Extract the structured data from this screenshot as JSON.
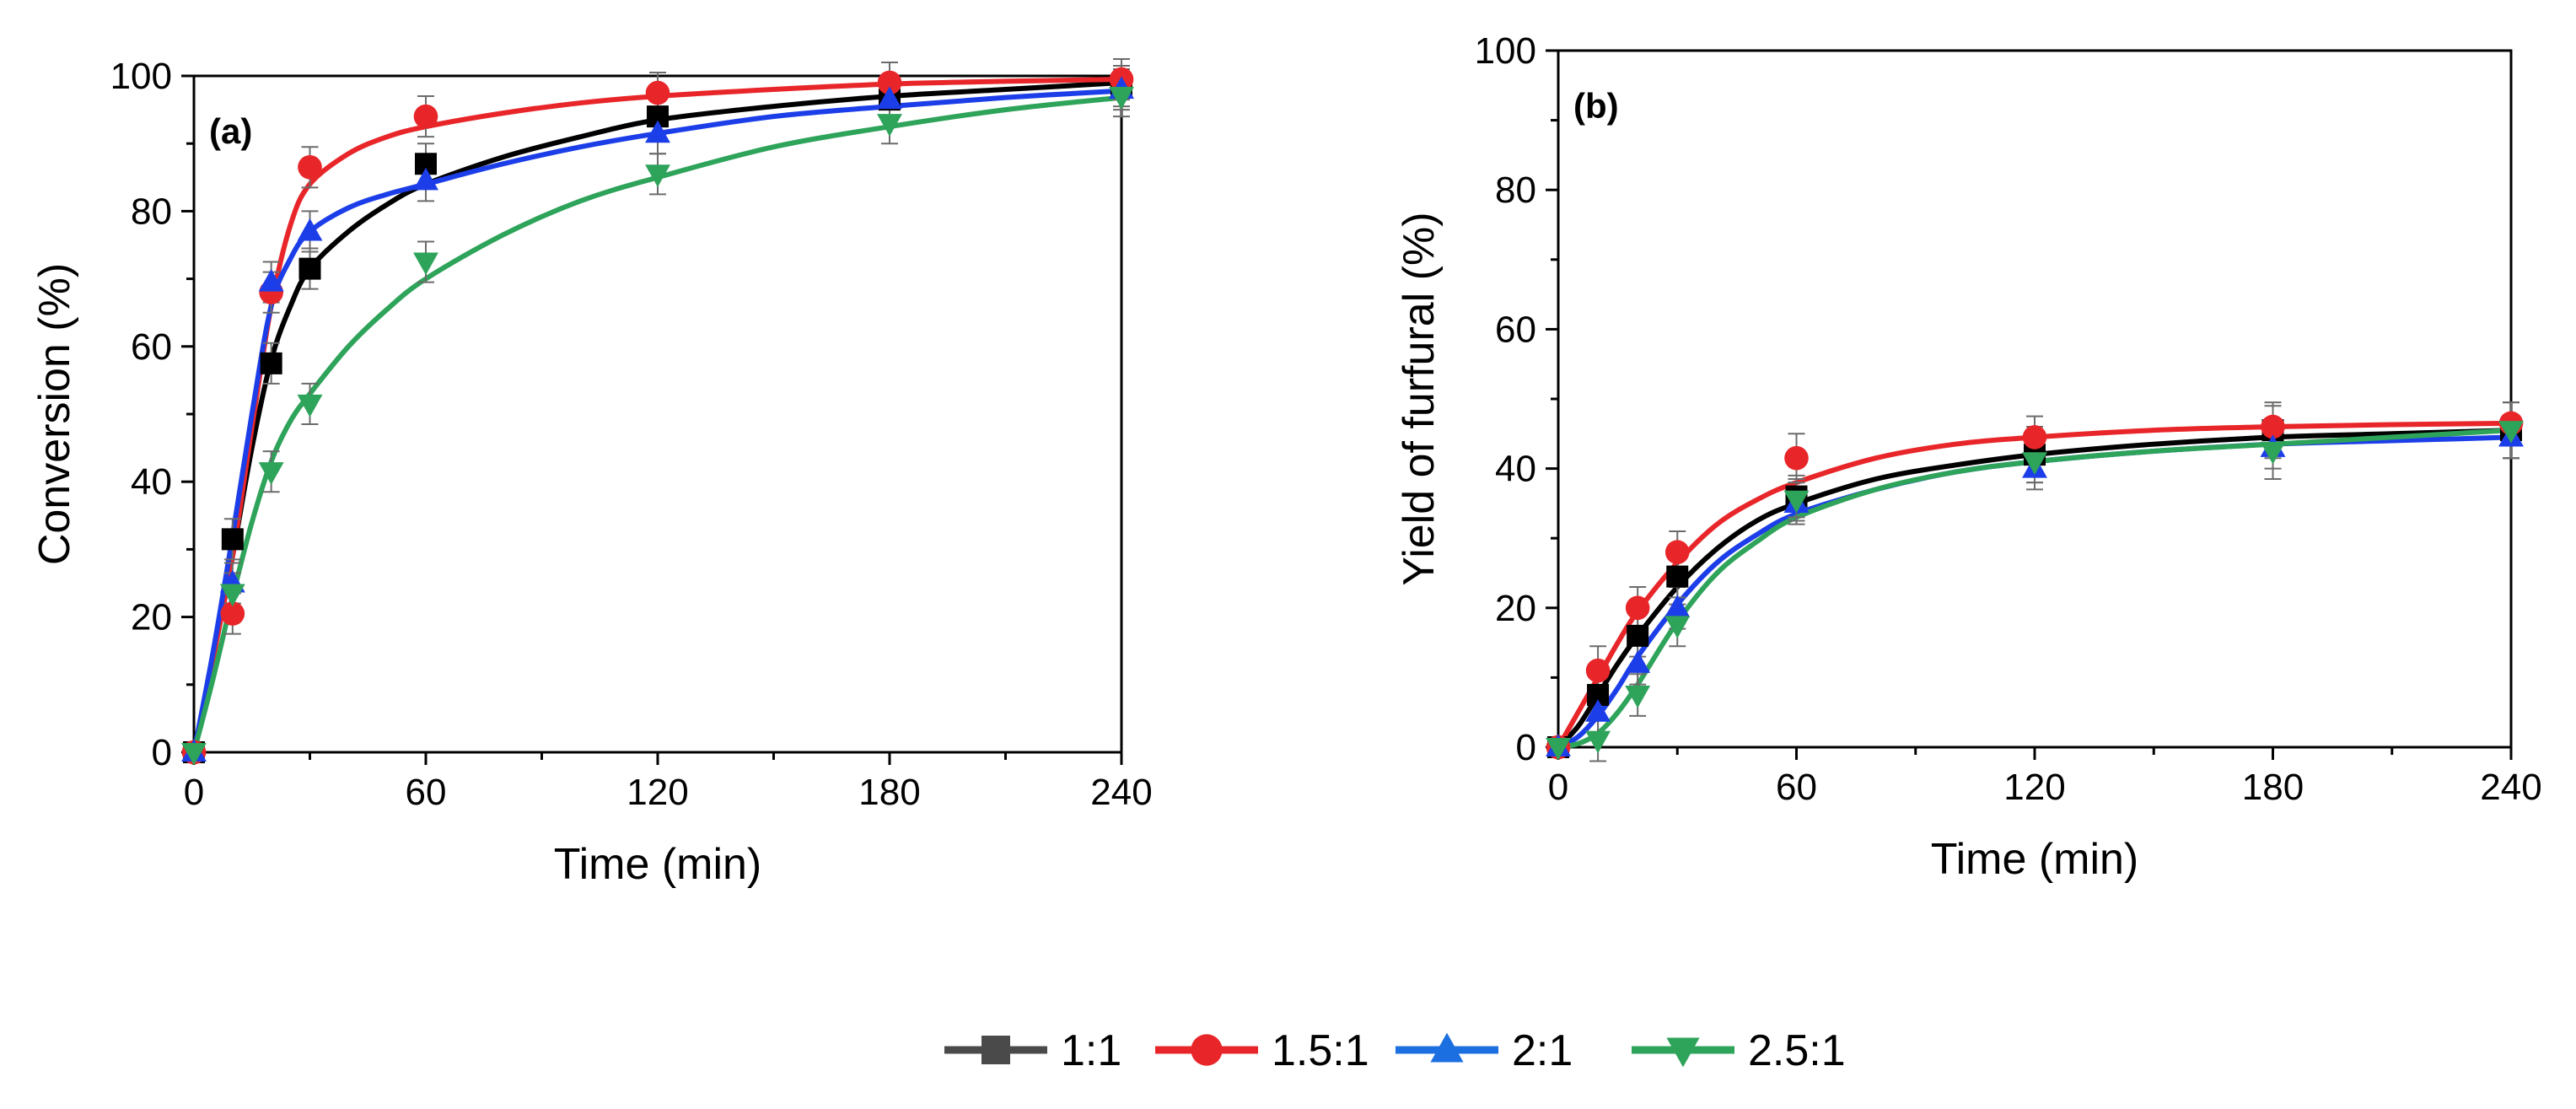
{
  "chart_data": [
    {
      "type": "line",
      "panel": "(a)",
      "xlabel": "Time (min)",
      "ylabel": "Conversion (%)",
      "xlim": [
        0,
        240
      ],
      "ylim": [
        0,
        100
      ],
      "xticks": [
        0,
        60,
        120,
        180,
        240
      ],
      "yticks": [
        0,
        20,
        40,
        60,
        80,
        100
      ],
      "x": [
        0,
        10,
        20,
        30,
        60,
        120,
        180,
        240
      ],
      "series": [
        {
          "name": "1:1",
          "marker": "square",
          "color": "#000000",
          "values": [
            0,
            31.5,
            57.5,
            71.5,
            87,
            94,
            96.5,
            98.5
          ],
          "err": [
            0,
            3,
            3,
            3,
            3,
            3,
            3,
            3
          ],
          "fit": [
            [
              0,
              0
            ],
            [
              5,
              14
            ],
            [
              10,
              29
            ],
            [
              15,
              45
            ],
            [
              20,
              58
            ],
            [
              25,
              66
            ],
            [
              30,
              71.5
            ],
            [
              40,
              77
            ],
            [
              50,
              81
            ],
            [
              60,
              84
            ],
            [
              80,
              88
            ],
            [
              100,
              91
            ],
            [
              120,
              93.5
            ],
            [
              150,
              95.5
            ],
            [
              180,
              97
            ],
            [
              210,
              98
            ],
            [
              240,
              99
            ]
          ]
        },
        {
          "name": "1.5:1",
          "marker": "circle",
          "color": "#e8262a",
          "values": [
            0,
            20.5,
            68,
            86.5,
            94,
            97.5,
            99,
            99.5
          ],
          "err": [
            0,
            3,
            3,
            3,
            3,
            3,
            3,
            3
          ],
          "fit": [
            [
              0,
              0
            ],
            [
              5,
              14
            ],
            [
              10,
              29
            ],
            [
              15,
              48
            ],
            [
              20,
              66
            ],
            [
              25,
              78
            ],
            [
              30,
              84
            ],
            [
              40,
              88.5
            ],
            [
              50,
              91
            ],
            [
              60,
              92.5
            ],
            [
              80,
              94.5
            ],
            [
              100,
              96
            ],
            [
              120,
              97
            ],
            [
              150,
              98
            ],
            [
              180,
              98.8
            ],
            [
              210,
              99.2
            ],
            [
              240,
              99.5
            ]
          ]
        },
        {
          "name": "2:1",
          "marker": "triangle-up",
          "color": "#1c3ee8",
          "values": [
            0,
            25,
            69.5,
            77,
            84.5,
            91.5,
            96.5,
            98
          ],
          "err": [
            0,
            3,
            3,
            3,
            3,
            3,
            3,
            3
          ],
          "fit": [
            [
              0,
              0
            ],
            [
              5,
              15
            ],
            [
              10,
              32
            ],
            [
              15,
              50
            ],
            [
              20,
              66
            ],
            [
              25,
              73
            ],
            [
              30,
              77
            ],
            [
              40,
              80.5
            ],
            [
              50,
              82.5
            ],
            [
              60,
              84
            ],
            [
              80,
              87
            ],
            [
              100,
              89.5
            ],
            [
              120,
              91.5
            ],
            [
              150,
              94
            ],
            [
              180,
              95.5
            ],
            [
              210,
              96.8
            ],
            [
              240,
              97.8
            ]
          ]
        },
        {
          "name": "2.5:1",
          "marker": "triangle-down",
          "color": "#2ea35a",
          "values": [
            0,
            23.5,
            41.5,
            51.5,
            72.5,
            85.5,
            93,
            97
          ],
          "err": [
            0,
            3,
            3,
            3,
            3,
            3,
            3,
            3
          ],
          "fit": [
            [
              0,
              0
            ],
            [
              5,
              11
            ],
            [
              10,
              23
            ],
            [
              15,
              34
            ],
            [
              20,
              43
            ],
            [
              25,
              49
            ],
            [
              30,
              53
            ],
            [
              40,
              60
            ],
            [
              50,
              65.5
            ],
            [
              60,
              70
            ],
            [
              80,
              76.5
            ],
            [
              100,
              81.5
            ],
            [
              120,
              85
            ],
            [
              150,
              89.5
            ],
            [
              180,
              92.5
            ],
            [
              210,
              95
            ],
            [
              240,
              96.8
            ]
          ]
        }
      ]
    },
    {
      "type": "line",
      "panel": "(b)",
      "xlabel": "Time (min)",
      "ylabel": "Yield of furfural (%)",
      "xlim": [
        0,
        240
      ],
      "ylim": [
        0,
        100
      ],
      "xticks": [
        0,
        60,
        120,
        180,
        240
      ],
      "yticks": [
        0,
        20,
        40,
        60,
        80,
        100
      ],
      "x": [
        0,
        10,
        20,
        30,
        60,
        120,
        180,
        240
      ],
      "series": [
        {
          "name": "1:1",
          "marker": "square",
          "color": "#000000",
          "values": [
            0,
            7.5,
            16,
            24.5,
            36,
            42,
            45.5,
            45.5
          ],
          "err": [
            0,
            3,
            3,
            3,
            3,
            4,
            4,
            4
          ],
          "fit": [
            [
              0,
              0
            ],
            [
              5,
              3
            ],
            [
              10,
              7.5
            ],
            [
              15,
              12
            ],
            [
              20,
              16
            ],
            [
              30,
              23
            ],
            [
              40,
              28.5
            ],
            [
              50,
              32.5
            ],
            [
              60,
              35
            ],
            [
              80,
              38.5
            ],
            [
              100,
              40.5
            ],
            [
              120,
              42
            ],
            [
              150,
              43.5
            ],
            [
              180,
              44.5
            ],
            [
              210,
              45
            ],
            [
              240,
              45.5
            ]
          ]
        },
        {
          "name": "1.5:1",
          "marker": "circle",
          "color": "#e8262a",
          "values": [
            0,
            11,
            20,
            28,
            41.5,
            44.5,
            46,
            46.5
          ],
          "err": [
            0,
            3.5,
            3,
            3,
            3.5,
            3,
            3,
            3
          ],
          "fit": [
            [
              0,
              0
            ],
            [
              5,
              5
            ],
            [
              10,
              10
            ],
            [
              15,
              15
            ],
            [
              20,
              19.5
            ],
            [
              30,
              26.5
            ],
            [
              40,
              32
            ],
            [
              50,
              35.5
            ],
            [
              60,
              38
            ],
            [
              80,
              41.5
            ],
            [
              100,
              43.5
            ],
            [
              120,
              44.5
            ],
            [
              150,
              45.5
            ],
            [
              180,
              46
            ],
            [
              210,
              46.3
            ],
            [
              240,
              46.5
            ]
          ]
        },
        {
          "name": "2:1",
          "marker": "triangle-up",
          "color": "#1c3ee8",
          "values": [
            0,
            5,
            12,
            20,
            35,
            40,
            43,
            44.5
          ],
          "err": [
            0,
            3,
            3,
            3,
            3,
            3,
            3,
            3
          ],
          "fit": [
            [
              0,
              0
            ],
            [
              5,
              1.5
            ],
            [
              10,
              4.5
            ],
            [
              15,
              8.5
            ],
            [
              20,
              13
            ],
            [
              30,
              20.5
            ],
            [
              40,
              26.5
            ],
            [
              50,
              30.5
            ],
            [
              60,
              33.5
            ],
            [
              80,
              37
            ],
            [
              100,
              39.5
            ],
            [
              120,
              41
            ],
            [
              150,
              42.5
            ],
            [
              180,
              43.5
            ],
            [
              210,
              44
            ],
            [
              240,
              44.5
            ]
          ]
        },
        {
          "name": "2.5:1",
          "marker": "triangle-down",
          "color": "#2ea35a",
          "values": [
            0,
            1,
            7.5,
            17.5,
            35.5,
            41,
            42.5,
            45.5
          ],
          "err": [
            0,
            3,
            3,
            3,
            3,
            3,
            4,
            4
          ],
          "fit": [
            [
              0,
              0
            ],
            [
              5,
              0.5
            ],
            [
              10,
              2
            ],
            [
              15,
              5
            ],
            [
              20,
              9
            ],
            [
              30,
              18
            ],
            [
              40,
              25
            ],
            [
              50,
              29.5
            ],
            [
              60,
              33
            ],
            [
              80,
              37
            ],
            [
              100,
              39.5
            ],
            [
              120,
              41
            ],
            [
              150,
              42.5
            ],
            [
              180,
              43.5
            ],
            [
              210,
              44.5
            ],
            [
              240,
              45.5
            ]
          ]
        }
      ]
    }
  ],
  "legend": [
    {
      "label": "1:1",
      "color": "#4a4a4a",
      "marker": "square"
    },
    {
      "label": "1.5:1",
      "color": "#e8262a",
      "marker": "circle"
    },
    {
      "label": "2:1",
      "color": "#1c6fe0",
      "marker": "triangle-up"
    },
    {
      "label": "2.5:1",
      "color": "#2ea35a",
      "marker": "triangle-down"
    }
  ]
}
